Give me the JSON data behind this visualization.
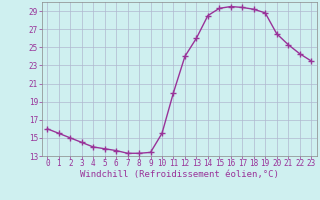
{
  "x_values": [
    0,
    1,
    2,
    3,
    4,
    5,
    6,
    7,
    8,
    9,
    10,
    11,
    12,
    13,
    14,
    15,
    16,
    17,
    18,
    19,
    20,
    21,
    22,
    23
  ],
  "y_values": [
    16.0,
    15.5,
    15.0,
    14.5,
    14.0,
    13.8,
    13.6,
    13.3,
    13.3,
    13.4,
    15.5,
    20.0,
    24.0,
    26.0,
    28.5,
    29.3,
    29.5,
    29.4,
    29.2,
    28.8,
    26.5,
    25.3,
    24.3,
    23.5
  ],
  "line_color": "#993399",
  "marker": "+",
  "marker_size": 4,
  "marker_linewidth": 1.0,
  "line_width": 1.0,
  "background_color": "#cff0f0",
  "grid_color": "#b0b8d0",
  "tick_color": "#993399",
  "label_color": "#993399",
  "xlabel": "Windchill (Refroidissement éolien,°C)",
  "xlabel_fontsize": 6.5,
  "ylim": [
    13,
    30
  ],
  "xlim_min": -0.5,
  "xlim_max": 23.5,
  "yticks": [
    13,
    15,
    17,
    19,
    21,
    23,
    25,
    27,
    29
  ],
  "xticks": [
    0,
    1,
    2,
    3,
    4,
    5,
    6,
    7,
    8,
    9,
    10,
    11,
    12,
    13,
    14,
    15,
    16,
    17,
    18,
    19,
    20,
    21,
    22,
    23
  ],
  "tick_fontsize": 5.5
}
